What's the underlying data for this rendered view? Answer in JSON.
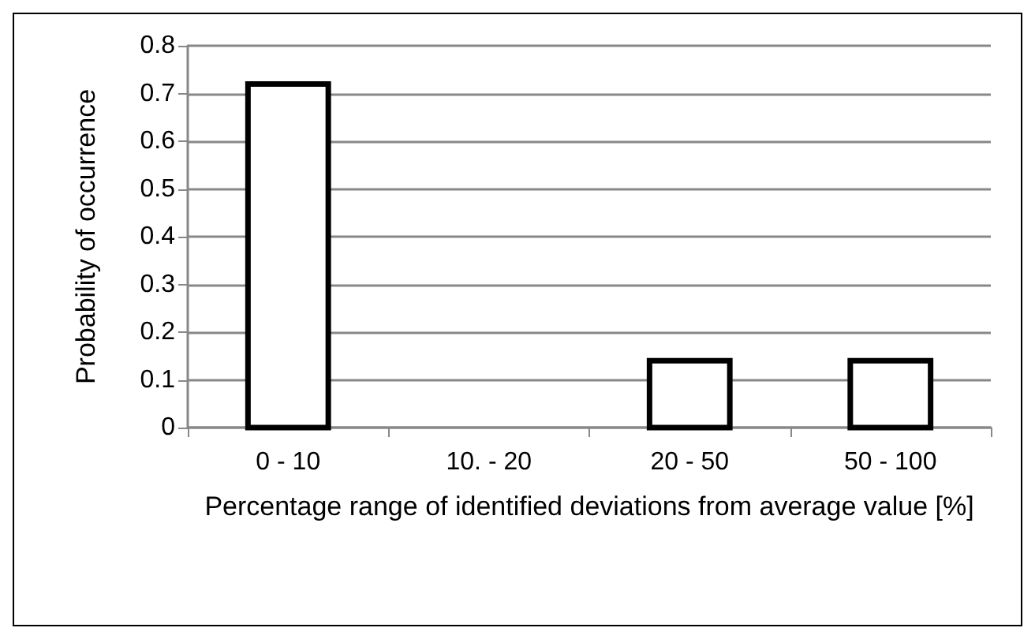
{
  "chart_data": {
    "type": "bar",
    "xlabel": "Percentage range of identified deviations from average value [%]",
    "ylabel": "Probability of occurrence",
    "categories": [
      "0 - 10",
      "10. - 20",
      "20 - 50",
      "50 - 100"
    ],
    "values": [
      0.72,
      0,
      0.14,
      0.14
    ],
    "color": "#ffffff",
    "ylim": [
      0,
      0.8
    ],
    "yticks": [
      0,
      0.1,
      0.2,
      0.3,
      0.4,
      0.5,
      0.6,
      0.7,
      0.8
    ],
    "grid": "y"
  }
}
